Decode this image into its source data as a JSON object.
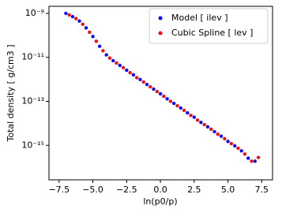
{
  "chart_data": {
    "type": "scatter",
    "log_y": true,
    "grid": false,
    "legend": "upper right",
    "x_label": "ln(p0/p)",
    "y_label": "Total density [ g/cm3 ]",
    "xlim": [
      -8.25,
      8.3
    ],
    "ylim": [
      2.1e-09,
      2.7e-17
    ],
    "xticks": [
      {
        "value": -7.5,
        "label": "−7.5"
      },
      {
        "value": -5,
        "label": "−5.0"
      },
      {
        "value": -2.5,
        "label": "−2.5"
      },
      {
        "value": 0,
        "label": "0.0"
      },
      {
        "value": 2.5,
        "label": "2.5"
      },
      {
        "value": 5,
        "label": "5.0"
      },
      {
        "value": 7.5,
        "label": "7.5"
      }
    ],
    "yticks": [
      {
        "value": 1e-09,
        "label": "10⁻⁹"
      },
      {
        "value": 1e-11,
        "label": "10⁻¹¹"
      },
      {
        "value": 1e-13,
        "label": "10⁻¹³"
      },
      {
        "value": 1e-15,
        "label": "10⁻¹⁵"
      }
    ],
    "series": [
      {
        "name": "Model [ ilev ]",
        "color": "#0a0aff",
        "x": [
          -7,
          -6.5,
          -6,
          -5.5,
          -5,
          -4.5,
          -4,
          -3.5,
          -3,
          -2.5,
          -2,
          -1.5,
          -1,
          -0.5,
          0,
          0.5,
          1,
          1.5,
          2,
          2.5,
          3,
          3.5,
          4,
          4.5,
          5,
          5.5,
          6,
          6.5,
          7
        ],
        "values": [
          1e-09,
          7.1e-10,
          4.5e-10,
          2.2e-10,
          8.9e-11,
          3.2e-11,
          1.3e-11,
          7.1e-12,
          4.3e-12,
          2.6e-12,
          1.6e-12,
          9.8e-13,
          5.9e-13,
          3.6e-13,
          2.2e-13,
          1.3e-13,
          8.1e-14,
          5e-14,
          3e-14,
          1.9e-14,
          1.1e-14,
          6.9e-15,
          4.2e-15,
          2.6e-15,
          1.5e-15,
          9.5e-16,
          5.6e-16,
          2.6e-16,
          1.9e-16
        ]
      },
      {
        "name": "Cubic Spline [ lev ]",
        "color": "#f01010",
        "x": [
          -6.75,
          -6.25,
          -5.75,
          -5.25,
          -4.75,
          -4.25,
          -3.75,
          -3.25,
          -2.75,
          -2.25,
          -1.75,
          -1.25,
          -0.75,
          -0.25,
          0.25,
          0.75,
          1.25,
          1.75,
          2.25,
          2.75,
          3.25,
          3.75,
          4.25,
          4.75,
          5.25,
          5.75,
          6.25,
          6.75,
          7.25
        ],
        "values": [
          8.5e-10,
          5.8e-10,
          3.2e-10,
          1.4e-10,
          5.4e-11,
          2e-11,
          9.3e-12,
          5.5e-12,
          3.4e-12,
          2e-12,
          1.2e-12,
          7.6e-13,
          4.6e-13,
          2.8e-13,
          1.7e-13,
          1e-13,
          6.3e-14,
          3.9e-14,
          2.3e-14,
          1.4e-14,
          8.7e-15,
          5.4e-15,
          3.2e-15,
          2e-15,
          1.2e-15,
          7.4e-16,
          4e-16,
          1.9e-16,
          2.8e-16
        ]
      }
    ]
  }
}
